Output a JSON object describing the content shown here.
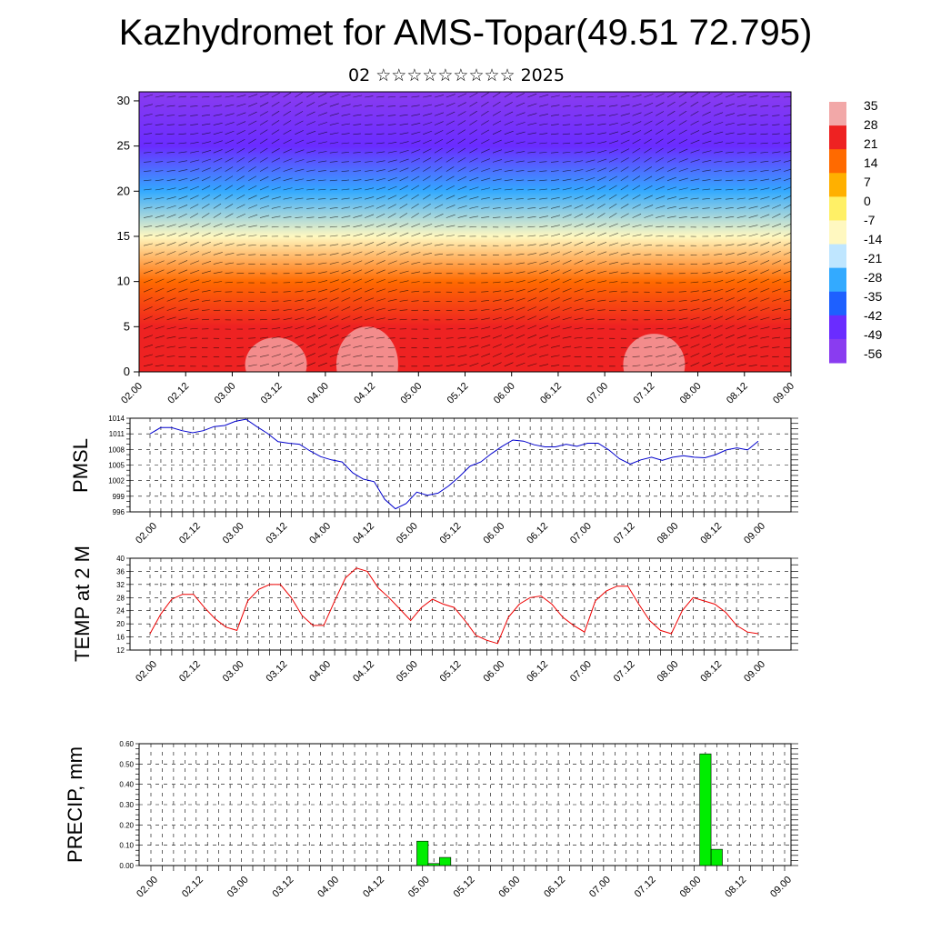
{
  "title": "Kazhydromet for AMS-Topar(49.51 72.795)",
  "subtitle": "02 ☆☆☆☆☆☆☆☆☆ 2025",
  "time_labels": [
    "02.00",
    "02.12",
    "03.00",
    "03.12",
    "04.00",
    "04.12",
    "05.00",
    "05.12",
    "06.00",
    "06.12",
    "07.00",
    "07.12",
    "08.00",
    "08.12",
    "09.00"
  ],
  "chart_data": [
    {
      "type": "heatmap",
      "title": "",
      "x_labels": [
        "02.00",
        "02.12",
        "03.00",
        "03.12",
        "04.00",
        "04.12",
        "05.00",
        "05.12",
        "06.00",
        "06.12",
        "07.00",
        "07.12",
        "08.00",
        "08.12",
        "09.00"
      ],
      "ylabel": "",
      "ylim": [
        0,
        31
      ],
      "yticks": [
        0,
        5,
        10,
        15,
        20,
        25,
        30
      ],
      "colorbar": {
        "labels": [
          "35",
          "28",
          "21",
          "14",
          "7",
          "0",
          "-7",
          "-14",
          "-21",
          "-28",
          "-35",
          "-42",
          "-49",
          "-56"
        ],
        "colors": [
          "#f2a8a8",
          "#ee2222",
          "#ff6a00",
          "#ffb000",
          "#fff066",
          "#fff8c0",
          "#bfe6ff",
          "#33aaff",
          "#1e60ff",
          "#6a2cff",
          "#8a3cf0"
        ]
      },
      "profile": [
        {
          "z": 0,
          "t": 30
        },
        {
          "z": 5,
          "t": 22
        },
        {
          "z": 10,
          "t": 12
        },
        {
          "z": 15,
          "t": -12
        },
        {
          "z": 20,
          "t": -30
        },
        {
          "z": 25,
          "t": -48
        },
        {
          "z": 31,
          "t": -58
        }
      ]
    },
    {
      "type": "line",
      "ylabel": "PMSL",
      "ylim": [
        996,
        1014
      ],
      "yticks": [
        996,
        999,
        1002,
        1005,
        1008,
        1011,
        1014
      ],
      "color": "#0000cc",
      "values": [
        1011,
        1012.2,
        1012.2,
        1011.6,
        1011.2,
        1011.6,
        1012.4,
        1012.6,
        1013.4,
        1013.8,
        1012.4,
        1011.1,
        1009.5,
        1009.2,
        1009,
        1007.7,
        1006.6,
        1006,
        1005.6,
        1003.5,
        1002.3,
        1001.8,
        998.4,
        996.6,
        997.6,
        999.8,
        999.2,
        999.6,
        1001,
        1002.8,
        1004.8,
        1005.6,
        1007.2,
        1008.6,
        1009.8,
        1009.6,
        1008.9,
        1008.5,
        1008.5,
        1009,
        1008.6,
        1009.2,
        1009.2,
        1007.9,
        1006.2,
        1005.2,
        1006,
        1006.5,
        1005.9,
        1006.5,
        1006.8,
        1006.5,
        1006.4,
        1007,
        1007.9,
        1008.3,
        1007.9,
        1009.6
      ]
    },
    {
      "type": "line",
      "ylabel": "TEMP at 2 M",
      "ylim": [
        12,
        40
      ],
      "yticks": [
        12,
        16,
        20,
        24,
        28,
        32,
        36,
        40
      ],
      "color": "#ee0000",
      "values": [
        17,
        23,
        27.5,
        29,
        29,
        25,
        21.5,
        19,
        18,
        27,
        30.5,
        32,
        32,
        28,
        22.5,
        19.5,
        19.5,
        27,
        34,
        37,
        36,
        31,
        28,
        24.5,
        21,
        25,
        27.5,
        26,
        25,
        21,
        16.5,
        15,
        14,
        22,
        26,
        28,
        28.5,
        26,
        22,
        19.5,
        17.5,
        27,
        30,
        31.5,
        31.5,
        26,
        21,
        18,
        17,
        24,
        28,
        27,
        26,
        23.5,
        19.5,
        17.5,
        17
      ]
    },
    {
      "type": "bar",
      "ylabel": "PRECIP, mm",
      "ylim": [
        0,
        0.6
      ],
      "ytick_labels": [
        "0.00",
        "0.10",
        "0.20",
        "0.30",
        "0.40",
        "0.50",
        "0.60"
      ],
      "color": "#00ee00",
      "bars": [
        {
          "t": 5.0,
          "value": 0.12
        },
        {
          "t": 5.125,
          "value": 0.01
        },
        {
          "t": 5.25,
          "value": 0.04
        },
        {
          "t": 8.125,
          "value": 0.55
        },
        {
          "t": 8.25,
          "value": 0.08
        }
      ]
    }
  ]
}
